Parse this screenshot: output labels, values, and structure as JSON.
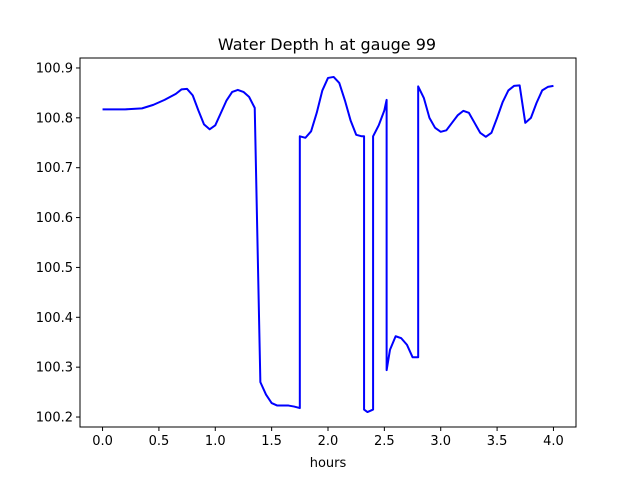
{
  "chart_data": {
    "type": "line",
    "title": "Water Depth h at gauge 99",
    "xlabel": "hours",
    "ylabel": "",
    "xlim": [
      -0.2,
      4.2
    ],
    "ylim": [
      100.18,
      100.92
    ],
    "xticks": [
      0.0,
      0.5,
      1.0,
      1.5,
      2.0,
      2.5,
      3.0,
      3.5,
      4.0
    ],
    "xtick_labels": [
      "0.0",
      "0.5",
      "1.0",
      "1.5",
      "2.0",
      "2.5",
      "3.0",
      "3.5",
      "4.0"
    ],
    "yticks": [
      100.2,
      100.3,
      100.4,
      100.5,
      100.6,
      100.7,
      100.8,
      100.9
    ],
    "ytick_labels": [
      "100.2",
      "100.3",
      "100.4",
      "100.5",
      "100.6",
      "100.7",
      "100.8",
      "100.9"
    ],
    "grid": false,
    "series": [
      {
        "color": "#0000ff",
        "x": [
          0.0,
          0.2,
          0.35,
          0.45,
          0.55,
          0.65,
          0.7,
          0.75,
          0.8,
          0.85,
          0.9,
          0.95,
          1.0,
          1.05,
          1.1,
          1.15,
          1.2,
          1.25,
          1.3,
          1.35,
          1.4,
          1.4,
          1.45,
          1.5,
          1.55,
          1.6,
          1.65,
          1.7,
          1.75,
          1.75,
          1.8,
          1.85,
          1.9,
          1.95,
          2.0,
          2.05,
          2.1,
          2.15,
          2.2,
          2.25,
          2.3,
          2.32,
          2.32,
          2.35,
          2.4,
          2.4,
          2.45,
          2.5,
          2.52,
          2.52,
          2.55,
          2.6,
          2.65,
          2.7,
          2.75,
          2.8,
          2.8,
          2.85,
          2.9,
          2.95,
          3.0,
          3.05,
          3.1,
          3.15,
          3.2,
          3.25,
          3.3,
          3.35,
          3.4,
          3.45,
          3.5,
          3.55,
          3.6,
          3.65,
          3.7,
          3.75,
          3.8,
          3.85,
          3.9,
          3.95,
          4.0
        ],
        "y": [
          100.817,
          100.817,
          100.819,
          100.826,
          100.836,
          100.848,
          100.857,
          100.858,
          100.845,
          100.815,
          100.787,
          100.777,
          100.785,
          100.81,
          100.835,
          100.852,
          100.856,
          100.852,
          100.842,
          100.82,
          100.27,
          100.27,
          100.245,
          100.228,
          100.223,
          100.223,
          100.223,
          100.221,
          100.218,
          100.763,
          100.76,
          100.773,
          100.81,
          100.855,
          100.88,
          100.882,
          100.87,
          100.835,
          100.795,
          100.766,
          100.763,
          100.763,
          100.215,
          100.21,
          100.215,
          100.763,
          100.785,
          100.815,
          100.836,
          100.294,
          100.335,
          100.362,
          100.358,
          100.345,
          100.32,
          100.32,
          100.863,
          100.84,
          100.8,
          100.78,
          100.772,
          100.775,
          100.79,
          100.805,
          100.814,
          100.81,
          100.79,
          100.77,
          100.762,
          100.77,
          100.8,
          100.832,
          100.855,
          100.864,
          100.865,
          100.79,
          100.8,
          100.83,
          100.855,
          100.862,
          100.864
        ]
      }
    ]
  }
}
